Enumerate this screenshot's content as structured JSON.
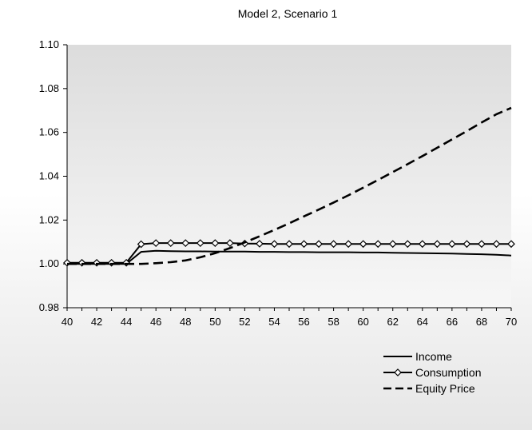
{
  "chart_data": {
    "type": "line",
    "title": "Model 2, Scenario 1",
    "xlabel": "",
    "ylabel": "",
    "xlim": [
      40,
      70
    ],
    "ylim": [
      0.98,
      1.1
    ],
    "xticks": [
      "40",
      "42",
      "44",
      "46",
      "48",
      "50",
      "52",
      "54",
      "56",
      "58",
      "60",
      "62",
      "64",
      "66",
      "68",
      "70"
    ],
    "yticks": [
      "1.10",
      "1.08",
      "1.06",
      "1.04",
      "1.02",
      "1.00",
      "0.98"
    ],
    "grid": false,
    "legend_position": "bottom-right",
    "x": [
      40,
      41,
      42,
      43,
      44,
      45,
      46,
      47,
      48,
      49,
      50,
      51,
      52,
      53,
      54,
      55,
      56,
      57,
      58,
      59,
      60,
      61,
      62,
      63,
      64,
      65,
      66,
      67,
      68,
      69,
      70
    ],
    "series": [
      {
        "name": "Income",
        "style": "solid",
        "color": "#000000",
        "values": [
          1.0,
          1.0,
          1.0,
          1.0,
          1.0,
          1.0055,
          1.006,
          1.0058,
          1.0057,
          1.0057,
          1.0056,
          1.0056,
          1.0056,
          1.0055,
          1.0055,
          1.0054,
          1.0054,
          1.0053,
          1.0053,
          1.0053,
          1.0052,
          1.0052,
          1.0051,
          1.005,
          1.0049,
          1.0048,
          1.0047,
          1.0045,
          1.0044,
          1.0042,
          1.0038
        ]
      },
      {
        "name": "Consumption",
        "style": "solid-diamond",
        "color": "#000000",
        "values": [
          1.0005,
          1.0005,
          1.0005,
          1.0005,
          1.0005,
          1.009,
          1.0095,
          1.0095,
          1.0095,
          1.0095,
          1.0095,
          1.0095,
          1.0093,
          1.0092,
          1.0091,
          1.0091,
          1.0091,
          1.0091,
          1.0091,
          1.0091,
          1.0091,
          1.0091,
          1.0091,
          1.0091,
          1.0091,
          1.0091,
          1.0091,
          1.0091,
          1.0091,
          1.0091,
          1.0091
        ]
      },
      {
        "name": "Equity Price",
        "style": "dashed",
        "color": "#000000",
        "values": [
          1.0,
          1.0,
          1.0,
          1.0,
          1.0,
          1.0,
          1.0003,
          1.0008,
          1.0016,
          1.003,
          1.0049,
          1.0072,
          1.0098,
          1.0126,
          1.0155,
          1.0185,
          1.0217,
          1.0248,
          1.028,
          1.0313,
          1.0348,
          1.0383,
          1.0419,
          1.0455,
          1.0492,
          1.053,
          1.0568,
          1.0606,
          1.0645,
          1.0683,
          1.0712
        ]
      }
    ]
  }
}
